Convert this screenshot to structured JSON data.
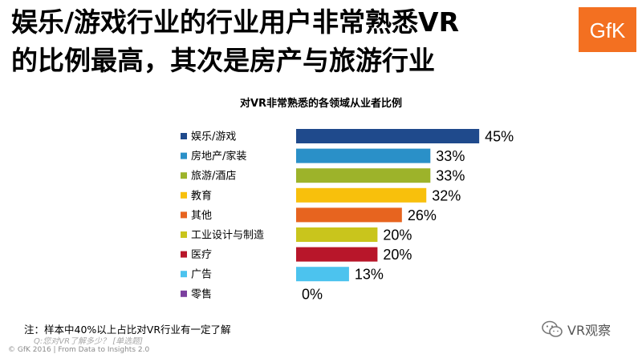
{
  "headline": {
    "line1": "娱乐/游戏行业的行业用户非常熟悉VR",
    "line2": "的比例最高，其次是房产与旅游行业"
  },
  "logo": {
    "text": "GfK",
    "color": "#f37021"
  },
  "chart_data": {
    "type": "bar",
    "orientation": "horizontal",
    "title": "对VR非常熟悉的各领域从业者比例",
    "xlabel": "",
    "ylabel": "",
    "xlim": [
      0,
      50
    ],
    "grid": false,
    "legend": "left",
    "value_suffix": "%",
    "categories": [
      "娱乐/游戏",
      "房地产/家装",
      "旅游/酒店",
      "教育",
      "其他",
      "工业设计与制造",
      "医疗",
      "广告",
      "零售"
    ],
    "values": [
      45,
      33,
      33,
      32,
      26,
      20,
      20,
      13,
      0
    ],
    "colors": [
      "#1f4a8c",
      "#2a90c8",
      "#9db32a",
      "#f8c00c",
      "#e7641f",
      "#c9c51c",
      "#b8162a",
      "#4cc3ee",
      "#7b3f9e"
    ]
  },
  "note": "注：样本中40%以上占比对VR行业有一定了解",
  "watermark_question": "Q:您对VR了解多少？ [单选题]",
  "footer": "© GfK 2016 | From Data to Insights 2.0",
  "wechat": {
    "icon": "wechat-icon",
    "label": "VR观察"
  }
}
